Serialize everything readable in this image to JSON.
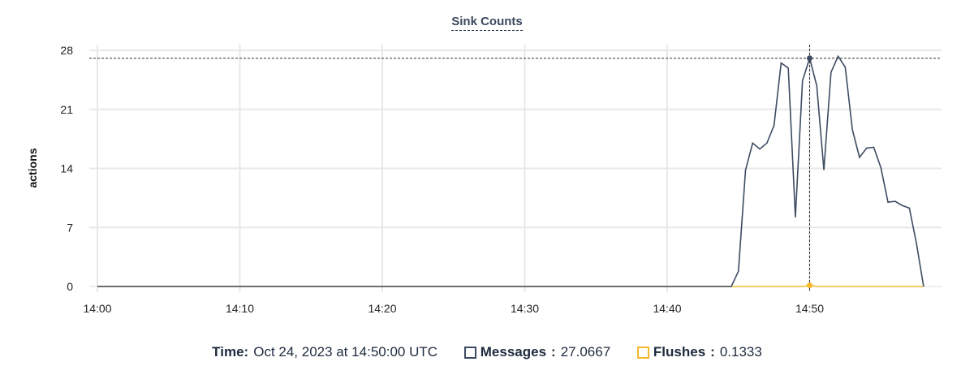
{
  "chart_data": {
    "type": "line",
    "title": "Sink Counts",
    "ylabel": "actions",
    "xlabel": "",
    "ylim": [
      0,
      28
    ],
    "yticks": [
      "0",
      "7",
      "14",
      "21",
      "28"
    ],
    "xticks": [
      "14:00",
      "14:10",
      "14:20",
      "14:30",
      "14:40",
      "14:50"
    ],
    "xrange": [
      "14:00",
      "14:58"
    ],
    "grid": true,
    "series": [
      {
        "name": "Messages",
        "color": "#3d4b61",
        "points": [
          [
            "14:00",
            0
          ],
          [
            "14:44:30",
            0
          ],
          [
            "14:45",
            1.8
          ],
          [
            "14:45:30",
            13.8
          ],
          [
            "14:46",
            17.0
          ],
          [
            "14:46:30",
            16.3
          ],
          [
            "14:47",
            17.0
          ],
          [
            "14:47:30",
            19.1
          ],
          [
            "14:48",
            26.5
          ],
          [
            "14:48:30",
            25.9
          ],
          [
            "14:49",
            8.2
          ],
          [
            "14:49:30",
            24.4
          ],
          [
            "14:50",
            27.0667
          ],
          [
            "14:50:30",
            23.8
          ],
          [
            "14:51",
            13.8
          ],
          [
            "14:51:30",
            25.4
          ],
          [
            "14:52",
            27.3
          ],
          [
            "14:52:30",
            26.0
          ],
          [
            "14:53",
            18.6
          ],
          [
            "14:53:30",
            15.3
          ],
          [
            "14:54",
            16.4
          ],
          [
            "14:54:30",
            16.5
          ],
          [
            "14:55",
            14.1
          ],
          [
            "14:55:30",
            10.0
          ],
          [
            "14:56",
            10.1
          ],
          [
            "14:56:30",
            9.6
          ],
          [
            "14:57",
            9.3
          ],
          [
            "14:57:30",
            5.1
          ],
          [
            "14:58",
            0
          ]
        ]
      },
      {
        "name": "Flushes",
        "color": "#f5b82e",
        "points": [
          [
            "14:00",
            0
          ],
          [
            "14:49:30",
            0
          ],
          [
            "14:50",
            0.1333
          ],
          [
            "14:50:30",
            0
          ],
          [
            "14:58",
            0
          ]
        ]
      }
    ],
    "hover": {
      "time_label": "Time:",
      "time": "Oct 24, 2023 at 14:50:00 UTC",
      "x": "14:50",
      "values": [
        {
          "name": "Messages",
          "value": "27.0667"
        },
        {
          "name": "Flushes",
          "value": "0.1333"
        }
      ]
    }
  }
}
